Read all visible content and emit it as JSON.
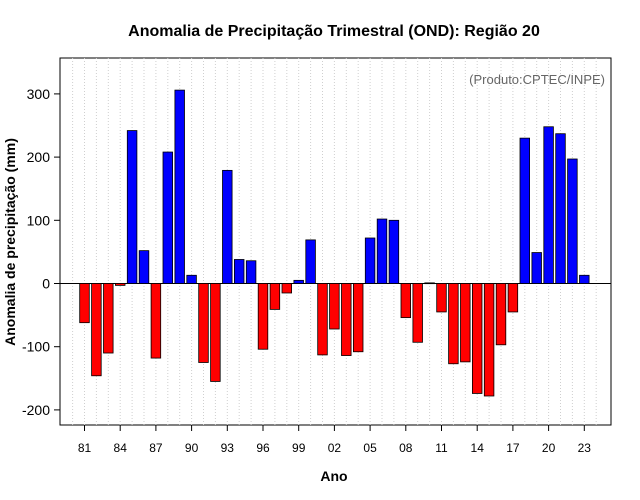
{
  "chart_data": {
    "type": "bar",
    "title": "Anomalia de Precipitação Trimestral (OND): Região 20",
    "xlabel": "Ano",
    "ylabel": "Anomalia de precipitação (mm)",
    "annotation": "(Produto:CPTEC/INPE)",
    "ylim": [
      -230,
      355
    ],
    "yticks": [
      -200,
      -100,
      0,
      100,
      200,
      300
    ],
    "xtick_labels": [
      "81",
      "84",
      "87",
      "90",
      "93",
      "96",
      "99",
      "02",
      "05",
      "08",
      "11",
      "14",
      "17",
      "20",
      "23"
    ],
    "xtick_years": [
      1981,
      1984,
      1987,
      1990,
      1993,
      1996,
      1999,
      2002,
      2005,
      2008,
      2011,
      2014,
      2017,
      2020,
      2023
    ],
    "grid": true,
    "colors": {
      "positive": "#0000ff",
      "negative": "#ff0000"
    },
    "categories": [
      1981,
      1982,
      1983,
      1984,
      1985,
      1986,
      1987,
      1988,
      1989,
      1990,
      1991,
      1992,
      1993,
      1994,
      1995,
      1996,
      1997,
      1998,
      1999,
      2000,
      2001,
      2002,
      2003,
      2004,
      2005,
      2006,
      2007,
      2008,
      2009,
      2010,
      2011,
      2012,
      2013,
      2014,
      2015,
      2016,
      2017,
      2018,
      2019,
      2020,
      2021,
      2022,
      2023
    ],
    "values": [
      -62,
      -146,
      -110,
      -3,
      242,
      52,
      -118,
      208,
      306,
      13,
      -125,
      -155,
      179,
      38,
      36,
      -104,
      -41,
      -15,
      5,
      69,
      -113,
      -72,
      -114,
      -108,
      72,
      102,
      100,
      -54,
      -93,
      1,
      -45,
      -127,
      -124,
      -174,
      -178,
      -97,
      -45,
      230,
      49,
      248,
      237,
      197,
      13
    ]
  }
}
